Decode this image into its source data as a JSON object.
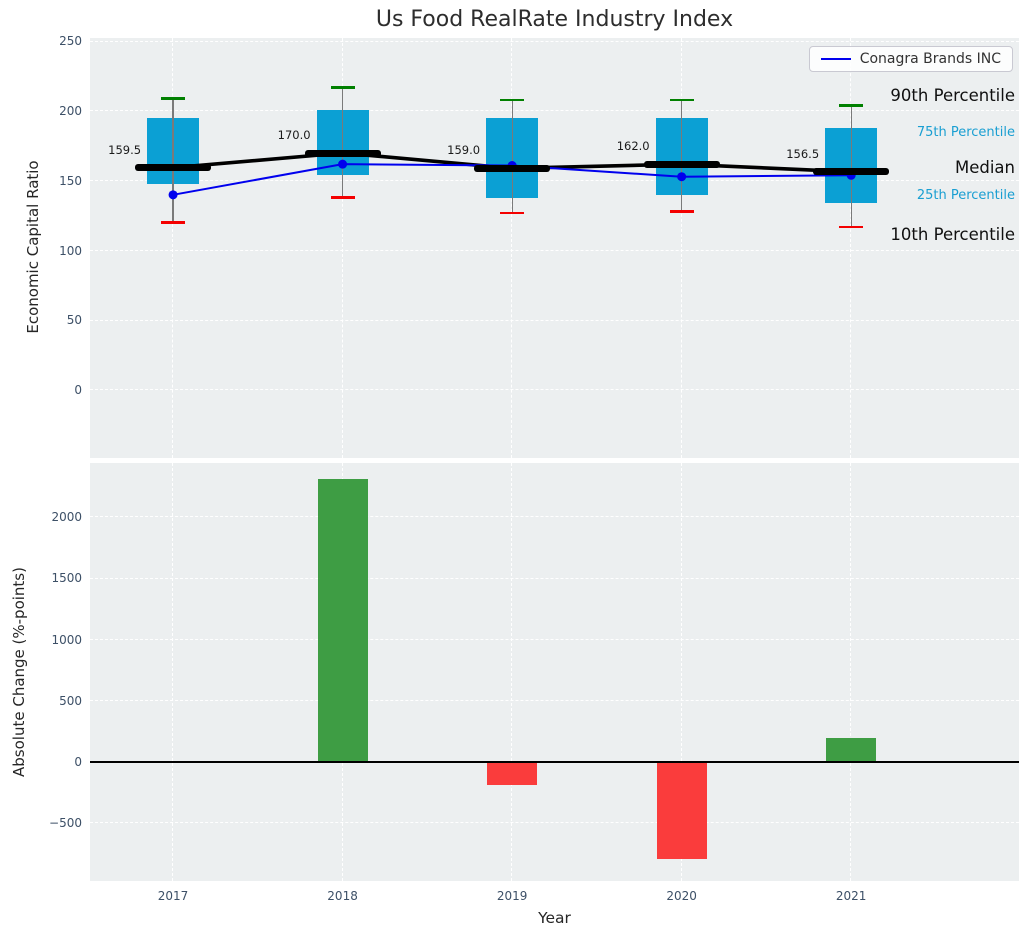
{
  "colors": {
    "box_fill": "#0ba0d4",
    "median_line": "#000000",
    "company_line": "#0000ee",
    "whisker": "#7a7a7a",
    "cap_90th": "#008000",
    "cap_10th": "#f40000",
    "bar_positive": "#3e9d44",
    "bar_negative": "#fa3c3c",
    "plot_background": "#eceff0",
    "grid": "#ffffff",
    "tick_label": "#3d5067",
    "percentile_minor_label": "#1a9fd2"
  },
  "chart_data": [
    {
      "type": "box",
      "title": "Us Food RealRate Industry Index",
      "ylabel": "Economic Capital Ratio",
      "categories": [
        "2017",
        "2018",
        "2019",
        "2020",
        "2021"
      ],
      "yticks": [
        0,
        50,
        100,
        150,
        200,
        250
      ],
      "ylim": [
        -48.8,
        252.5
      ],
      "grid": true,
      "legend_position": "upper right",
      "boxes": {
        "p90": [
          209,
          217,
          208,
          208,
          204
        ],
        "p75": [
          195,
          201,
          195,
          195,
          188
        ],
        "median": [
          159.5,
          170.0,
          159.0,
          162.0,
          156.5
        ],
        "p25": [
          148,
          154,
          138,
          140,
          134
        ],
        "p10": [
          120,
          138,
          127,
          128,
          117
        ]
      },
      "median_labels": [
        "159.5",
        "170.0",
        "159.0",
        "162.0",
        "156.5"
      ],
      "series": [
        {
          "name": "Conagra Brands INC",
          "values": [
            140,
            162,
            161,
            153,
            154
          ]
        }
      ],
      "percentile_annotations": [
        {
          "label": "90th Percentile",
          "at": 210,
          "style": "major"
        },
        {
          "label": "75th Percentile",
          "at": 184,
          "style": "minor"
        },
        {
          "label": "Median",
          "at": 158.5,
          "style": "major"
        },
        {
          "label": "25th Percentile",
          "at": 138.5,
          "style": "minor"
        },
        {
          "label": "10th Percentile",
          "at": 110.5,
          "style": "major"
        }
      ]
    },
    {
      "type": "bar",
      "xlabel": "Year",
      "ylabel": "Absolute Change (%-points)",
      "categories": [
        "2017",
        "2018",
        "2019",
        "2020",
        "2021"
      ],
      "values": [
        0,
        2310,
        -190,
        -790,
        195
      ],
      "yticks": [
        -500,
        0,
        500,
        1000,
        1500,
        2000
      ],
      "ylim": [
        -972,
        2442
      ],
      "grid": true
    }
  ]
}
